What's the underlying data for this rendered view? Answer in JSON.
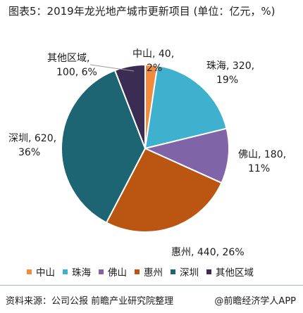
{
  "title": "图表5：2019年龙光地产城市更新项目 (单位：亿元，%)",
  "chart_data": {
    "type": "pie",
    "start_angle_deg": 0,
    "direction": "clockwise",
    "slices": [
      {
        "name": "中山",
        "value": 40,
        "percent": "2%",
        "label_line1": "中山, 40,",
        "label_line2": "2%",
        "color": "#f28c3c"
      },
      {
        "name": "珠海",
        "value": 320,
        "percent": "19%",
        "label_line1": "珠海, 320,",
        "label_line2": "19%",
        "color": "#3fb0cd"
      },
      {
        "name": "佛山",
        "value": 180,
        "percent": "11%",
        "label_line1": "佛山, 180,",
        "label_line2": "11%",
        "color": "#8064a8"
      },
      {
        "name": "惠州",
        "value": 440,
        "percent": "26%",
        "label_line1": "惠州, 440, 26%",
        "label_line2": "",
        "color": "#bb5512"
      },
      {
        "name": "深圳",
        "value": 620,
        "percent": "36%",
        "label_line1": "深圳, 620,",
        "label_line2": "36%",
        "color": "#1e6573"
      },
      {
        "name": "其他区域",
        "value": 100,
        "percent": "6%",
        "label_line1": "其他区域,",
        "label_line2": "100, 6%",
        "color": "#3a2c52"
      }
    ],
    "legend_position": "bottom"
  },
  "legend": [
    "中山",
    "珠海",
    "佛山",
    "惠州",
    "深圳",
    "其他区域"
  ],
  "footer": {
    "source": "资料来源：公司公报 前瞻产业研究院整理",
    "brand": "@前瞻经济学人APP"
  }
}
